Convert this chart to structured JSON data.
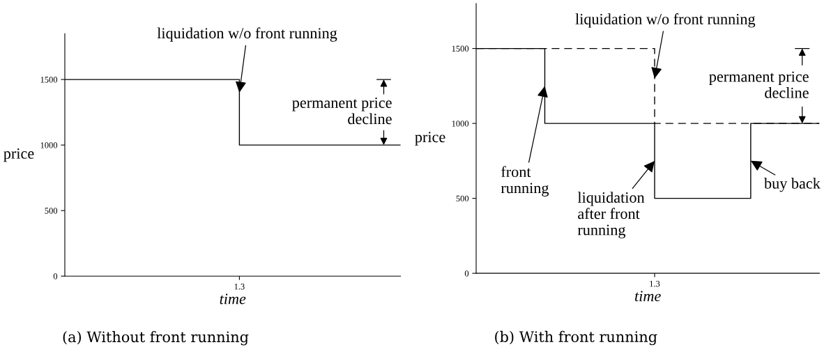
{
  "chart_data": [
    {
      "type": "step",
      "title": "(a) Without front running",
      "xlabel": "time",
      "ylabel": "price",
      "categories": [
        null,
        null,
        null,
        null,
        null,
        null,
        null,
        null,
        null,
        null,
        null,
        null,
        null,
        "1.3",
        null,
        null,
        null,
        null,
        null,
        null,
        null,
        null,
        null,
        null,
        null,
        null
      ],
      "ylim": [
        0,
        1850
      ],
      "yticks": [
        0,
        500,
        1000,
        1500
      ],
      "grid": false,
      "legend": false,
      "series": [
        {
          "values": [
            1500,
            1500,
            1500,
            1500,
            1500,
            1500,
            1500,
            1500,
            1500,
            1500,
            1500,
            1500,
            1500,
            1000,
            1000,
            1000,
            1000,
            1000,
            1000,
            1000,
            1000,
            1000,
            1000,
            1000,
            1000,
            1000
          ],
          "color": "#000000",
          "line_style": "solid"
        }
      ],
      "annotations": [
        {
          "text": "liquidation w/o front running",
          "x": "1.3",
          "y": 1400
        },
        "permanent price decline"
      ]
    },
    {
      "type": "step",
      "title": "(b) With front running",
      "xlabel": "time",
      "ylabel": "price",
      "categories": [
        null,
        null,
        null,
        null,
        null,
        null,
        null,
        null,
        null,
        null,
        null,
        null,
        null,
        "1.3",
        null,
        null,
        null,
        null,
        null,
        null,
        null,
        null,
        null,
        null,
        null,
        null
      ],
      "ylim": [
        0,
        1800
      ],
      "yticks": [
        0,
        500,
        1000,
        1500
      ],
      "grid": false,
      "legend": false,
      "series": [
        {
          "values": [
            1500,
            1500,
            1500,
            1500,
            1500,
            1500,
            1500,
            1500,
            1500,
            1500,
            1500,
            1500,
            1500,
            1000,
            1000,
            1000,
            1000,
            1000,
            1000,
            1000,
            1000,
            1000,
            1000,
            1000,
            1000,
            1000
          ],
          "color": "#000000",
          "line_style": "dashed"
        },
        {
          "values": [
            1500,
            1500,
            1500,
            1500,
            1500,
            1000,
            1000,
            1000,
            1000,
            1000,
            1000,
            1000,
            1000,
            500,
            500,
            500,
            500,
            500,
            500,
            500,
            1000,
            1000,
            1000,
            1000,
            1000,
            1000
          ],
          "color": "#000000",
          "line_style": "solid"
        }
      ],
      "annotations": [
        {
          "text": "liquidation w/o front running",
          "x": "1.3",
          "y": 1300
        },
        "front\nrunning",
        {
          "text": "liquidation\nafter front\nrunning",
          "x": "1.3",
          "y": 750
        },
        "buy back",
        "permanent price decline"
      ]
    }
  ]
}
